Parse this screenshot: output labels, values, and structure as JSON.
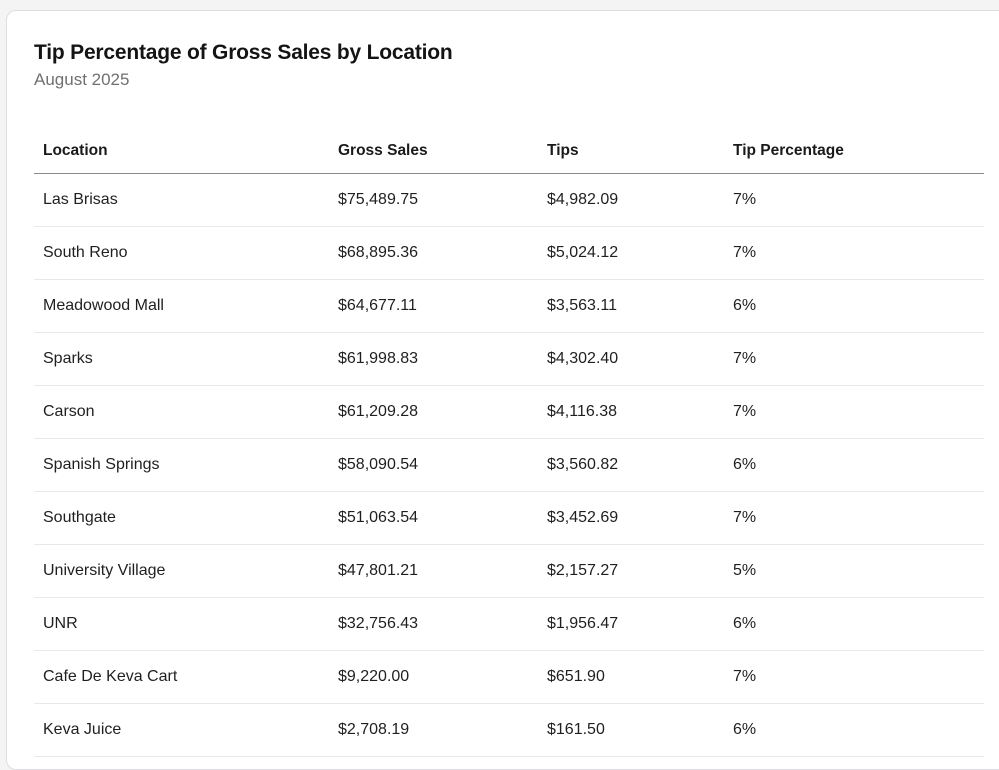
{
  "report": {
    "title": "Tip Percentage of Gross Sales by Location",
    "subtitle": "August 2025"
  },
  "table": {
    "headers": [
      "Location",
      "Gross Sales",
      "Tips",
      "Tip Percentage"
    ],
    "rows": [
      [
        "Las Brisas",
        "$75,489.75",
        "$4,982.09",
        "7%"
      ],
      [
        "South Reno",
        "$68,895.36",
        "$5,024.12",
        "7%"
      ],
      [
        "Meadowood Mall",
        "$64,677.11",
        "$3,563.11",
        "6%"
      ],
      [
        "Sparks",
        "$61,998.83",
        "$4,302.40",
        "7%"
      ],
      [
        "Carson",
        "$61,209.28",
        "$4,116.38",
        "7%"
      ],
      [
        "Spanish Springs",
        "$58,090.54",
        "$3,560.82",
        "6%"
      ],
      [
        "Southgate",
        "$51,063.54",
        "$3,452.69",
        "7%"
      ],
      [
        "University Village",
        "$47,801.21",
        "$2,157.27",
        "5%"
      ],
      [
        "UNR",
        "$32,756.43",
        "$1,956.47",
        "6%"
      ],
      [
        "Cafe De Keva Cart",
        "$9,220.00",
        "$651.90",
        "7%"
      ],
      [
        "Keva Juice",
        "$2,708.19",
        "$161.50",
        "6%"
      ]
    ]
  }
}
